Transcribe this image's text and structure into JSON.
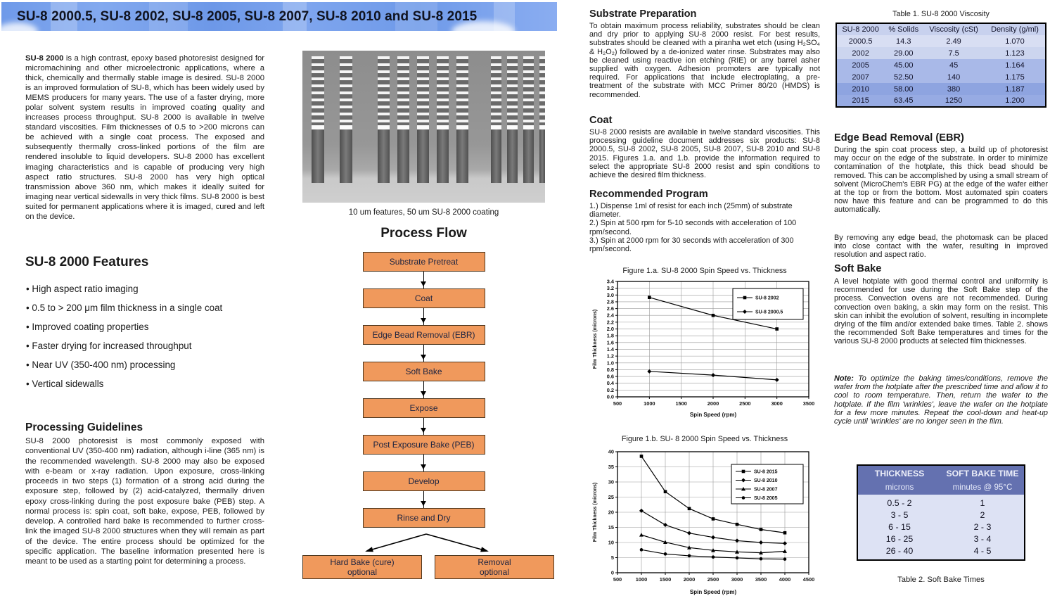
{
  "left": {
    "banner_title": "SU-8 2000.5, SU-8 2002, SU-8 2005, SU-8 2007, SU-8 2010 and SU-8 2015",
    "intro_lead": "SU-8 2000",
    "intro_rest": " is a high contrast, epoxy based photoresist designed for micromachining and other microelectronic applications, where a thick, chemically and thermally stable image is desired.  SU-8 2000 is an improved formulation of SU-8, which has been widely used by MEMS producers for many years. The use of a faster drying, more polar solvent system results in improved coating quality and increases process throughput. SU-8 2000 is available in twelve standard viscosities. Film thicknesses of 0.5 to >200 microns can be achieved with a single coat process. The exposed and subsequently thermally cross-linked portions of the film are rendered insoluble to liquid developers. SU-8 2000 has excellent imaging characteristics and is capable of producing very high aspect ratio structures.  SU-8 2000 has very high optical transmission above 360 nm, which makes it ideally suited for imaging near vertical sidewalls in very thick films. SU-8 2000 is best suited for permanent applications where it is imaged, cured and left on the device.",
    "features_heading": "SU-8 2000 Features",
    "features": [
      "High aspect ratio imaging",
      "0.5 to > 200 μm film thickness in a single coat",
      "Improved coating properties",
      "Faster drying for increased throughput",
      "Near UV (350-400 nm) processing",
      "Vertical sidewalls"
    ],
    "processing": {
      "heading": "Processing Guidelines",
      "body": "SU-8 2000 photoresist is most commonly exposed with conventional UV (350-400 nm) radiation, although i-line (365 nm) is the recommended wavelength.  SU-8 2000 may also be exposed with e-beam or x-ray radiation.  Upon exposure, cross-linking proceeds in two steps (1) formation of a strong acid during the exposure step, followed by (2) acid-catalyzed, thermally driven epoxy cross-linking during the post exposure bake (PEB) step.  A normal process is:  spin coat, soft bake, expose, PEB, followed by develop.  A controlled hard bake is recommended to further cross-link the imaged SU-8 2000 structures when they will remain as part of the device. The entire process should be optimized for the specific application. The baseline information presented here is meant to be used as a starting point for determining a process."
    },
    "sem_caption": "10 um features, 50 um SU-8 2000 coating",
    "process_flow": {
      "heading": "Process Flow",
      "steps": [
        "Substrate Pretreat",
        "Coat",
        "Edge Bead Removal (EBR)",
        "Soft Bake",
        "Expose",
        "Post Exposure Bake (PEB)",
        "Develop",
        "Rinse and Dry"
      ],
      "end_steps": [
        {
          "label": "Hard Bake (cure)",
          "sublabel": "optional"
        },
        {
          "label": "Removal",
          "sublabel": "optional"
        }
      ]
    }
  },
  "right": {
    "substrate_prep": {
      "heading": "Substrate Preparation",
      "body": "To obtain maximum process reliability, substrates should be clean and dry prior to applying SU-8 2000 resist. For best results, substrates should be cleaned with a piranha wet etch (using H₂SO₄ & H₂O₂) followed by a de-ionized water rinse. Substrates may also be cleaned using reactive ion etching (RIE) or any barrel asher supplied with oxygen.  Adhesion promoters are typically not required. For applications that include electroplating, a pre-treatment of the substrate with MCC Primer 80/20 (HMDS) is recommended."
    },
    "coat": {
      "heading": "Coat",
      "body": "SU-8 2000 resists are available in twelve standard viscosities. This processing guideline document addresses six products: SU-8 2000.5, SU-8 2002, SU-8 2005, SU-8 2007, SU-8 2010 and SU-8 2015. Figures 1.a. and 1.b. provide the information required to select the appropriate SU-8 2000 resist and spin conditions to achieve the desired film thickness."
    },
    "recommended_program": {
      "heading": "Recommended Program",
      "lines": [
        "1.) Dispense 1ml of resist for each inch (25mm) of substrate diameter.",
        "2.) Spin at 500 rpm for 5-10 seconds with acceleration of 100 rpm/second.",
        "3.) Spin at 2000 rpm for 30 seconds with acceleration of 300 rpm/second."
      ]
    },
    "table1": {
      "caption": "Table 1. SU-8 2000 Viscosity",
      "headers": [
        "SU-8 2000",
        "% Solids",
        "Viscosity (cSt)",
        "Density (g/ml)"
      ],
      "rows": [
        [
          "2000.5",
          "14.3",
          "2.49",
          "1.070"
        ],
        [
          "2002",
          "29.00",
          "7.5",
          "1.123"
        ],
        [
          "2005",
          "45.00",
          "45",
          "1.164"
        ],
        [
          "2007",
          "52.50",
          "140",
          "1.175"
        ],
        [
          "2010",
          "58.00",
          "380",
          "1.187"
        ],
        [
          "2015",
          "63.45",
          "1250",
          "1.200"
        ]
      ],
      "header_color": "#c8d1ee",
      "row_colors": [
        "#d8def3",
        "#ccd5ef",
        "#a9b9e8",
        "#a9b9e8",
        "#8ea4e0",
        "#97abe3"
      ]
    },
    "ebr": {
      "heading": "Edge Bead Removal (EBR)",
      "body1": "During the spin coat process step, a build up of photoresist may occur on the edge of the substrate. In order to minimize contamination of the hotplate, this thick bead should be removed. This can be accomplished by using a small stream of solvent (MicroChem's EBR PG) at the edge of the wafer either at the top or from the bottom.  Most automated spin coaters now have this feature and can be programmed to do this automatically.",
      "body2": "By removing any edge bead, the photomask can be placed into close contact with the wafer, resulting in improved resolution and aspect ratio."
    },
    "soft_bake": {
      "heading": "Soft Bake",
      "body": "A level hotplate with good thermal control and uniformity is recommended for use during the Soft Bake step of the process. Convection ovens are not recommended. During convection oven baking, a skin may form on the resist. This skin can inhibit the evolution of solvent, resulting in incomplete drying of the film and/or extended bake times. Table 2. shows the recommended Soft Bake temperatures and times for the various SU-8 2000 products at selected film thicknesses."
    },
    "note": {
      "label": "Note:",
      "body": " To optimize the baking times/conditions, remove the wafer from the hotplate after the prescribed time and allow it to cool to room temperature. Then, return the wafer to the hotplate. If the film 'wrinkles', leave the wafer on the hotplate for a few more minutes.  Repeat the cool-down and heat-up cycle until 'wrinkles' are no longer seen in the film."
    },
    "table2": {
      "caption": "Table 2. Soft Bake Times",
      "headers": [
        "THICKNESS",
        "SOFT BAKE TIME"
      ],
      "units": [
        "microns",
        "minutes @ 95°C"
      ],
      "rows": [
        [
          "0.5 - 2",
          "1"
        ],
        [
          "3 - 5",
          "2"
        ],
        [
          "6 - 15",
          "2 - 3"
        ],
        [
          "16 - 25",
          "3 - 4"
        ],
        [
          "26 - 40",
          "4 - 5"
        ]
      ]
    }
  },
  "chart_data": [
    {
      "type": "line",
      "title": "Figure 1.a. SU-8 2000 Spin Speed vs. Thickness",
      "xlabel": "Spin Speed (rpm)",
      "ylabel": "Film Thickness (microns)",
      "xlim": [
        500,
        3500
      ],
      "xstep": 500,
      "ylim": [
        0,
        3.4
      ],
      "ystep": 0.2,
      "ydecimals": 1,
      "grid": true,
      "legend_position": "top-right",
      "series": [
        {
          "name": "SU-8 2002",
          "marker": "square",
          "x": [
            1000,
            2000,
            3000
          ],
          "y": [
            2.93,
            2.4,
            2.0
          ]
        },
        {
          "name": "SU-8 2000.5",
          "marker": "diamond",
          "x": [
            1000,
            2000,
            3000
          ],
          "y": [
            0.75,
            0.64,
            0.5
          ]
        }
      ]
    },
    {
      "type": "line",
      "title": "Figure 1.b. SU- 8 2000 Spin Speed vs. Thickness",
      "xlabel": "Spin Speed (rpm)",
      "ylabel": "Film Thickness (microns)",
      "xlim": [
        500,
        4500
      ],
      "xstep": 500,
      "ylim": [
        0,
        40
      ],
      "ystep": 5,
      "ydecimals": 0,
      "grid": true,
      "legend_position": "top-right",
      "series": [
        {
          "name": "SU-8 2015",
          "marker": "square",
          "x": [
            1000,
            1500,
            2000,
            2500,
            3000,
            3500,
            4000
          ],
          "y": [
            38.5,
            26.8,
            21.2,
            17.8,
            16.0,
            14.3,
            13.2
          ]
        },
        {
          "name": "SU-8 2010",
          "marker": "diamond",
          "x": [
            1000,
            1500,
            2000,
            2500,
            3000,
            3500,
            4000
          ],
          "y": [
            20.5,
            15.8,
            13.1,
            11.7,
            10.6,
            10.0,
            9.7
          ]
        },
        {
          "name": "SU-8 2007",
          "marker": "triangle",
          "x": [
            1000,
            1500,
            2000,
            2500,
            3000,
            3500,
            4000
          ],
          "y": [
            12.5,
            10.1,
            8.3,
            7.4,
            6.9,
            6.6,
            7.1
          ]
        },
        {
          "name": "SU-8 2005",
          "marker": "circle",
          "x": [
            1000,
            1500,
            2000,
            2500,
            3000,
            3500,
            4000
          ],
          "y": [
            7.6,
            6.2,
            5.6,
            5.2,
            4.9,
            4.6,
            4.5
          ]
        }
      ]
    }
  ]
}
